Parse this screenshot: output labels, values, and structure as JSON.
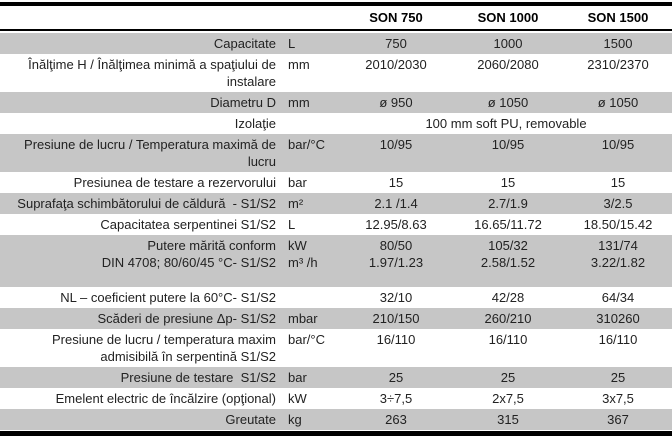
{
  "table": {
    "products": [
      "SON 750",
      "SON 1000",
      "SON 1500"
    ],
    "rows": [
      {
        "label": "Capacitate",
        "unit": "L",
        "values": [
          "750",
          "1000",
          "1500"
        ]
      },
      {
        "label": "Înălţime H / Înălţimea minimă a spaţiului de\ninstalare",
        "unit": "mm",
        "values": [
          "2010/2030",
          "2060/2080",
          "2310/2370"
        ]
      },
      {
        "label": "Diametru D",
        "unit": "mm",
        "values": [
          "ø 950",
          "ø 1050",
          "ø 1050"
        ]
      },
      {
        "label": "Izolaţie",
        "unit": "",
        "span_value": "100 mm soft PU, removable"
      },
      {
        "label": "Presiune de lucru / Temperatura maximă de\nlucru",
        "unit": "bar/°C",
        "values": [
          "10/95",
          "10/95",
          "10/95"
        ]
      },
      {
        "label": "Presiunea de testare a rezervorului",
        "unit": "bar",
        "values": [
          "15",
          "15",
          "15"
        ]
      },
      {
        "label": "Suprafaţa schimbătorului de căldură  - S1/S2",
        "unit": "m²",
        "values": [
          "2.1 /1.4",
          "2.7/1.9",
          "3/2.5"
        ]
      },
      {
        "label": "Capacitatea serpentinei S1/S2",
        "unit": "L",
        "values": [
          "12.95/8.63",
          "16.65/11.72",
          "18.50/15.42"
        ]
      },
      {
        "label": "Putere mărită conform\nDIN 4708; 80/60/45 °C- S1/S2",
        "unit": "kW\nm³ /h",
        "values": [
          "80/50\n1.97/1.23",
          "105/32\n2.58/1.52",
          "131/74\n3.22/1.82"
        ]
      },
      {
        "label": "NL – coeficient putere la 60°C- S1/S2",
        "unit": "",
        "values": [
          "32/10",
          "42/28",
          "64/34"
        ]
      },
      {
        "label": "Scăderi de presiune Δp- S1/S2",
        "unit": "mbar",
        "values": [
          "210/150",
          "260/210",
          "310260"
        ]
      },
      {
        "label": "Presiune de lucru / temperatura maxim\nadmisibilă în serpentină S1/S2",
        "unit": "bar/°C",
        "values": [
          "16/110",
          "16/110",
          "16/110"
        ]
      },
      {
        "label": "Presiune de testare  S1/S2",
        "unit": "bar",
        "values": [
          "25",
          "25",
          "25"
        ]
      },
      {
        "label": "Emelent electric de încălzire (opţional)",
        "unit": "kW",
        "values": [
          "3÷7,5",
          "2x7,5",
          "3x7,5"
        ]
      },
      {
        "label": "Greutate",
        "unit": "kg",
        "values": [
          "263",
          "315",
          "367"
        ]
      }
    ],
    "colors": {
      "row_shade": "#c6c6c6",
      "border": "#000000",
      "text": "#222222"
    }
  }
}
